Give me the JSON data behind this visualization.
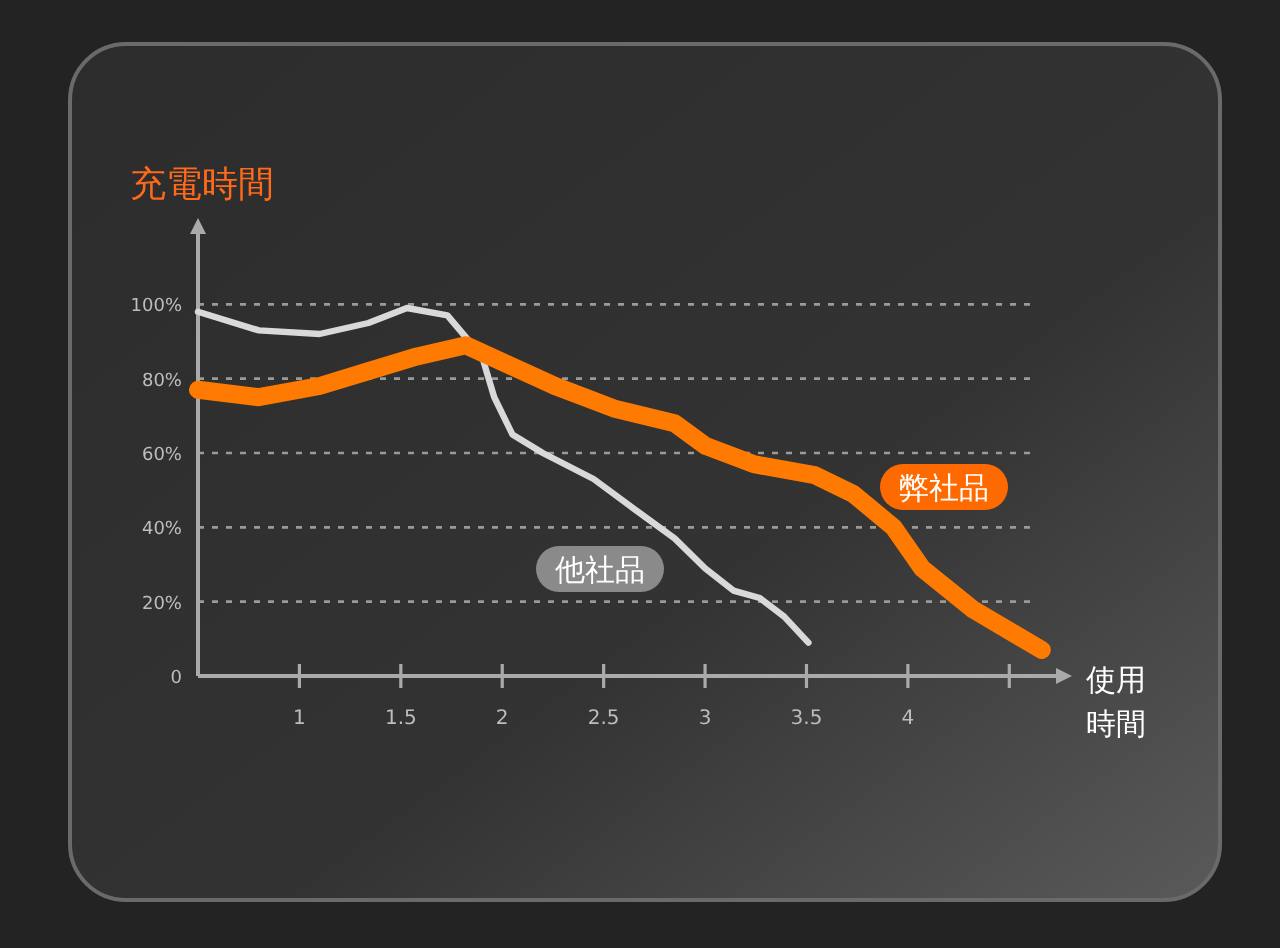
{
  "chart_data": {
    "type": "line",
    "ylabel": "充電時間",
    "xlabel": "使用時間",
    "xlim": [
      0.5,
      4.75
    ],
    "ylim": [
      0,
      120
    ],
    "xticks": [
      1,
      1.5,
      2,
      2.5,
      3,
      3.5,
      4,
      {
        "value": 4.5,
        "label": null
      }
    ],
    "yticks": [
      0,
      {
        "value": 20,
        "label": "20%"
      },
      {
        "value": 40,
        "label": "40%"
      },
      {
        "value": 60,
        "label": "60%"
      },
      {
        "value": 80,
        "label": "80%"
      },
      {
        "value": 100,
        "label": "100%"
      }
    ],
    "grid": "y",
    "line_style": "solid",
    "marker": "none",
    "series": [
      {
        "name": "他社品",
        "color": "#d9d9d9",
        "x": [
          0.5,
          0.8,
          1.1,
          1.34,
          1.53,
          1.73,
          1.9,
          1.96,
          2.05,
          2.2,
          2.45,
          2.65,
          2.85,
          3.0,
          3.14,
          3.27,
          3.39,
          3.51
        ],
        "values": [
          98,
          93,
          92,
          95,
          99,
          97,
          86,
          75,
          65,
          60,
          53,
          45,
          37,
          29,
          23,
          21,
          16,
          9
        ]
      },
      {
        "name": "弊社品",
        "color": "#ff7a00",
        "x": [
          0.5,
          0.8,
          1.1,
          1.34,
          1.58,
          1.82,
          2.02,
          2.26,
          2.55,
          2.85,
          3.0,
          3.24,
          3.54,
          3.73,
          3.93,
          4.07,
          4.32,
          4.66
        ],
        "values": [
          77,
          75,
          78,
          82,
          86,
          89,
          84,
          78,
          72,
          68,
          62,
          57,
          54,
          49,
          40,
          29,
          18,
          7
        ]
      }
    ]
  }
}
